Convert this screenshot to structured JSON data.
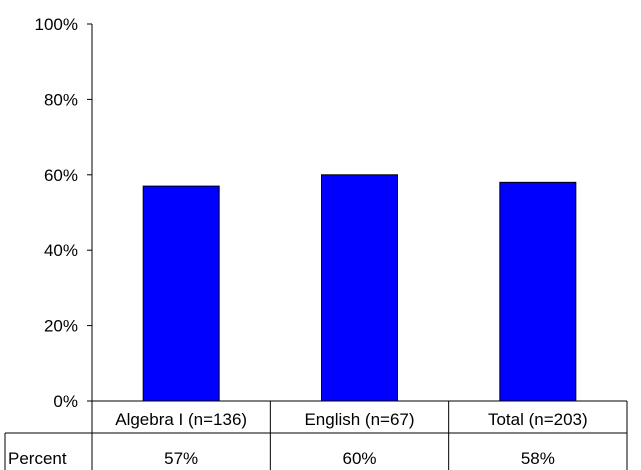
{
  "chart_data": {
    "type": "bar",
    "categories": [
      "Algebra I (n=136)",
      "English (n=67)",
      "Total (n=203)"
    ],
    "values": [
      57,
      60,
      58
    ],
    "ylim": [
      0,
      100
    ],
    "yticks": [
      0,
      20,
      40,
      60,
      80,
      100
    ],
    "ytick_labels": [
      "0%",
      "20%",
      "40%",
      "60%",
      "80%",
      "100%"
    ],
    "grid": false,
    "legend": "none",
    "bar_color": "#0000FF",
    "bar_edge_color": "#000000",
    "data_table": {
      "row_label": "Percent",
      "values": [
        "57%",
        "60%",
        "58%"
      ]
    }
  }
}
